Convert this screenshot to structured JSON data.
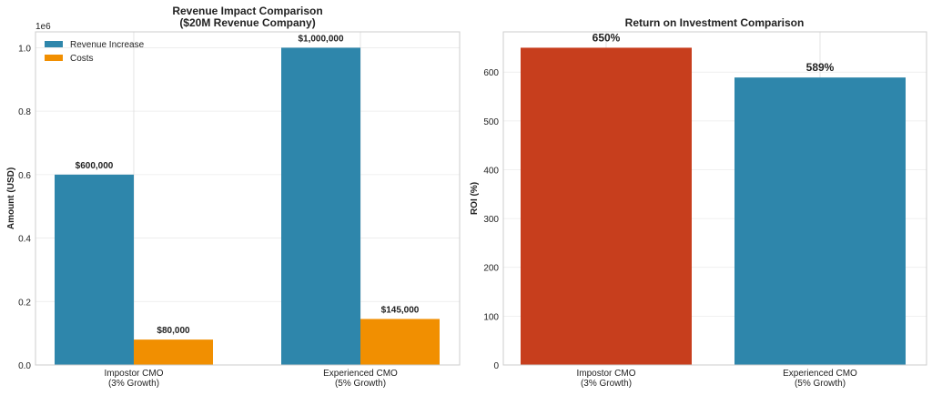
{
  "chart_data": [
    {
      "type": "bar",
      "title": "Revenue Impact Comparison\n($20M Revenue Company)",
      "title_lines": [
        "Revenue Impact Comparison",
        "($20M Revenue Company)"
      ],
      "xlabel": "",
      "ylabel": "Amount (USD)",
      "y_offset_label": "1e6",
      "categories": [
        "Impostor CMO\n(3% Growth)",
        "Experienced CMO\n(5% Growth)"
      ],
      "category_lines": [
        [
          "Impostor CMO",
          "(3% Growth)"
        ],
        [
          "Experienced CMO",
          "(5% Growth)"
        ]
      ],
      "series": [
        {
          "name": "Revenue Increase",
          "values": [
            600000,
            1000000
          ],
          "labels": [
            "$600,000",
            "$1,000,000"
          ],
          "color": "#2E86AB"
        },
        {
          "name": "Costs",
          "values": [
            80000,
            145000
          ],
          "labels": [
            "$80,000",
            "$145,000"
          ],
          "color": "#F18F01"
        }
      ],
      "ylim": [
        0,
        1050000
      ],
      "yticks": [
        0,
        200000,
        400000,
        600000,
        800000,
        1000000
      ],
      "ytick_labels": [
        "0.0",
        "0.2",
        "0.4",
        "0.6",
        "0.8",
        "1.0"
      ],
      "grid": true,
      "legend": "top-left"
    },
    {
      "type": "bar",
      "title": "Return on Investment Comparison",
      "xlabel": "",
      "ylabel": "ROI (%)",
      "categories": [
        "Impostor CMO\n(3% Growth)",
        "Experienced CMO\n(5% Growth)"
      ],
      "category_lines": [
        [
          "Impostor CMO",
          "(3% Growth)"
        ],
        [
          "Experienced CMO",
          "(5% Growth)"
        ]
      ],
      "values": [
        650,
        589
      ],
      "labels": [
        "650%",
        "589%"
      ],
      "colors": [
        "#C73E1D",
        "#2E86AB"
      ],
      "ylim": [
        0,
        682.5
      ],
      "yticks": [
        0,
        100,
        200,
        300,
        400,
        500,
        600
      ],
      "ytick_labels": [
        "0",
        "100",
        "200",
        "300",
        "400",
        "500",
        "600"
      ],
      "grid": true
    }
  ]
}
